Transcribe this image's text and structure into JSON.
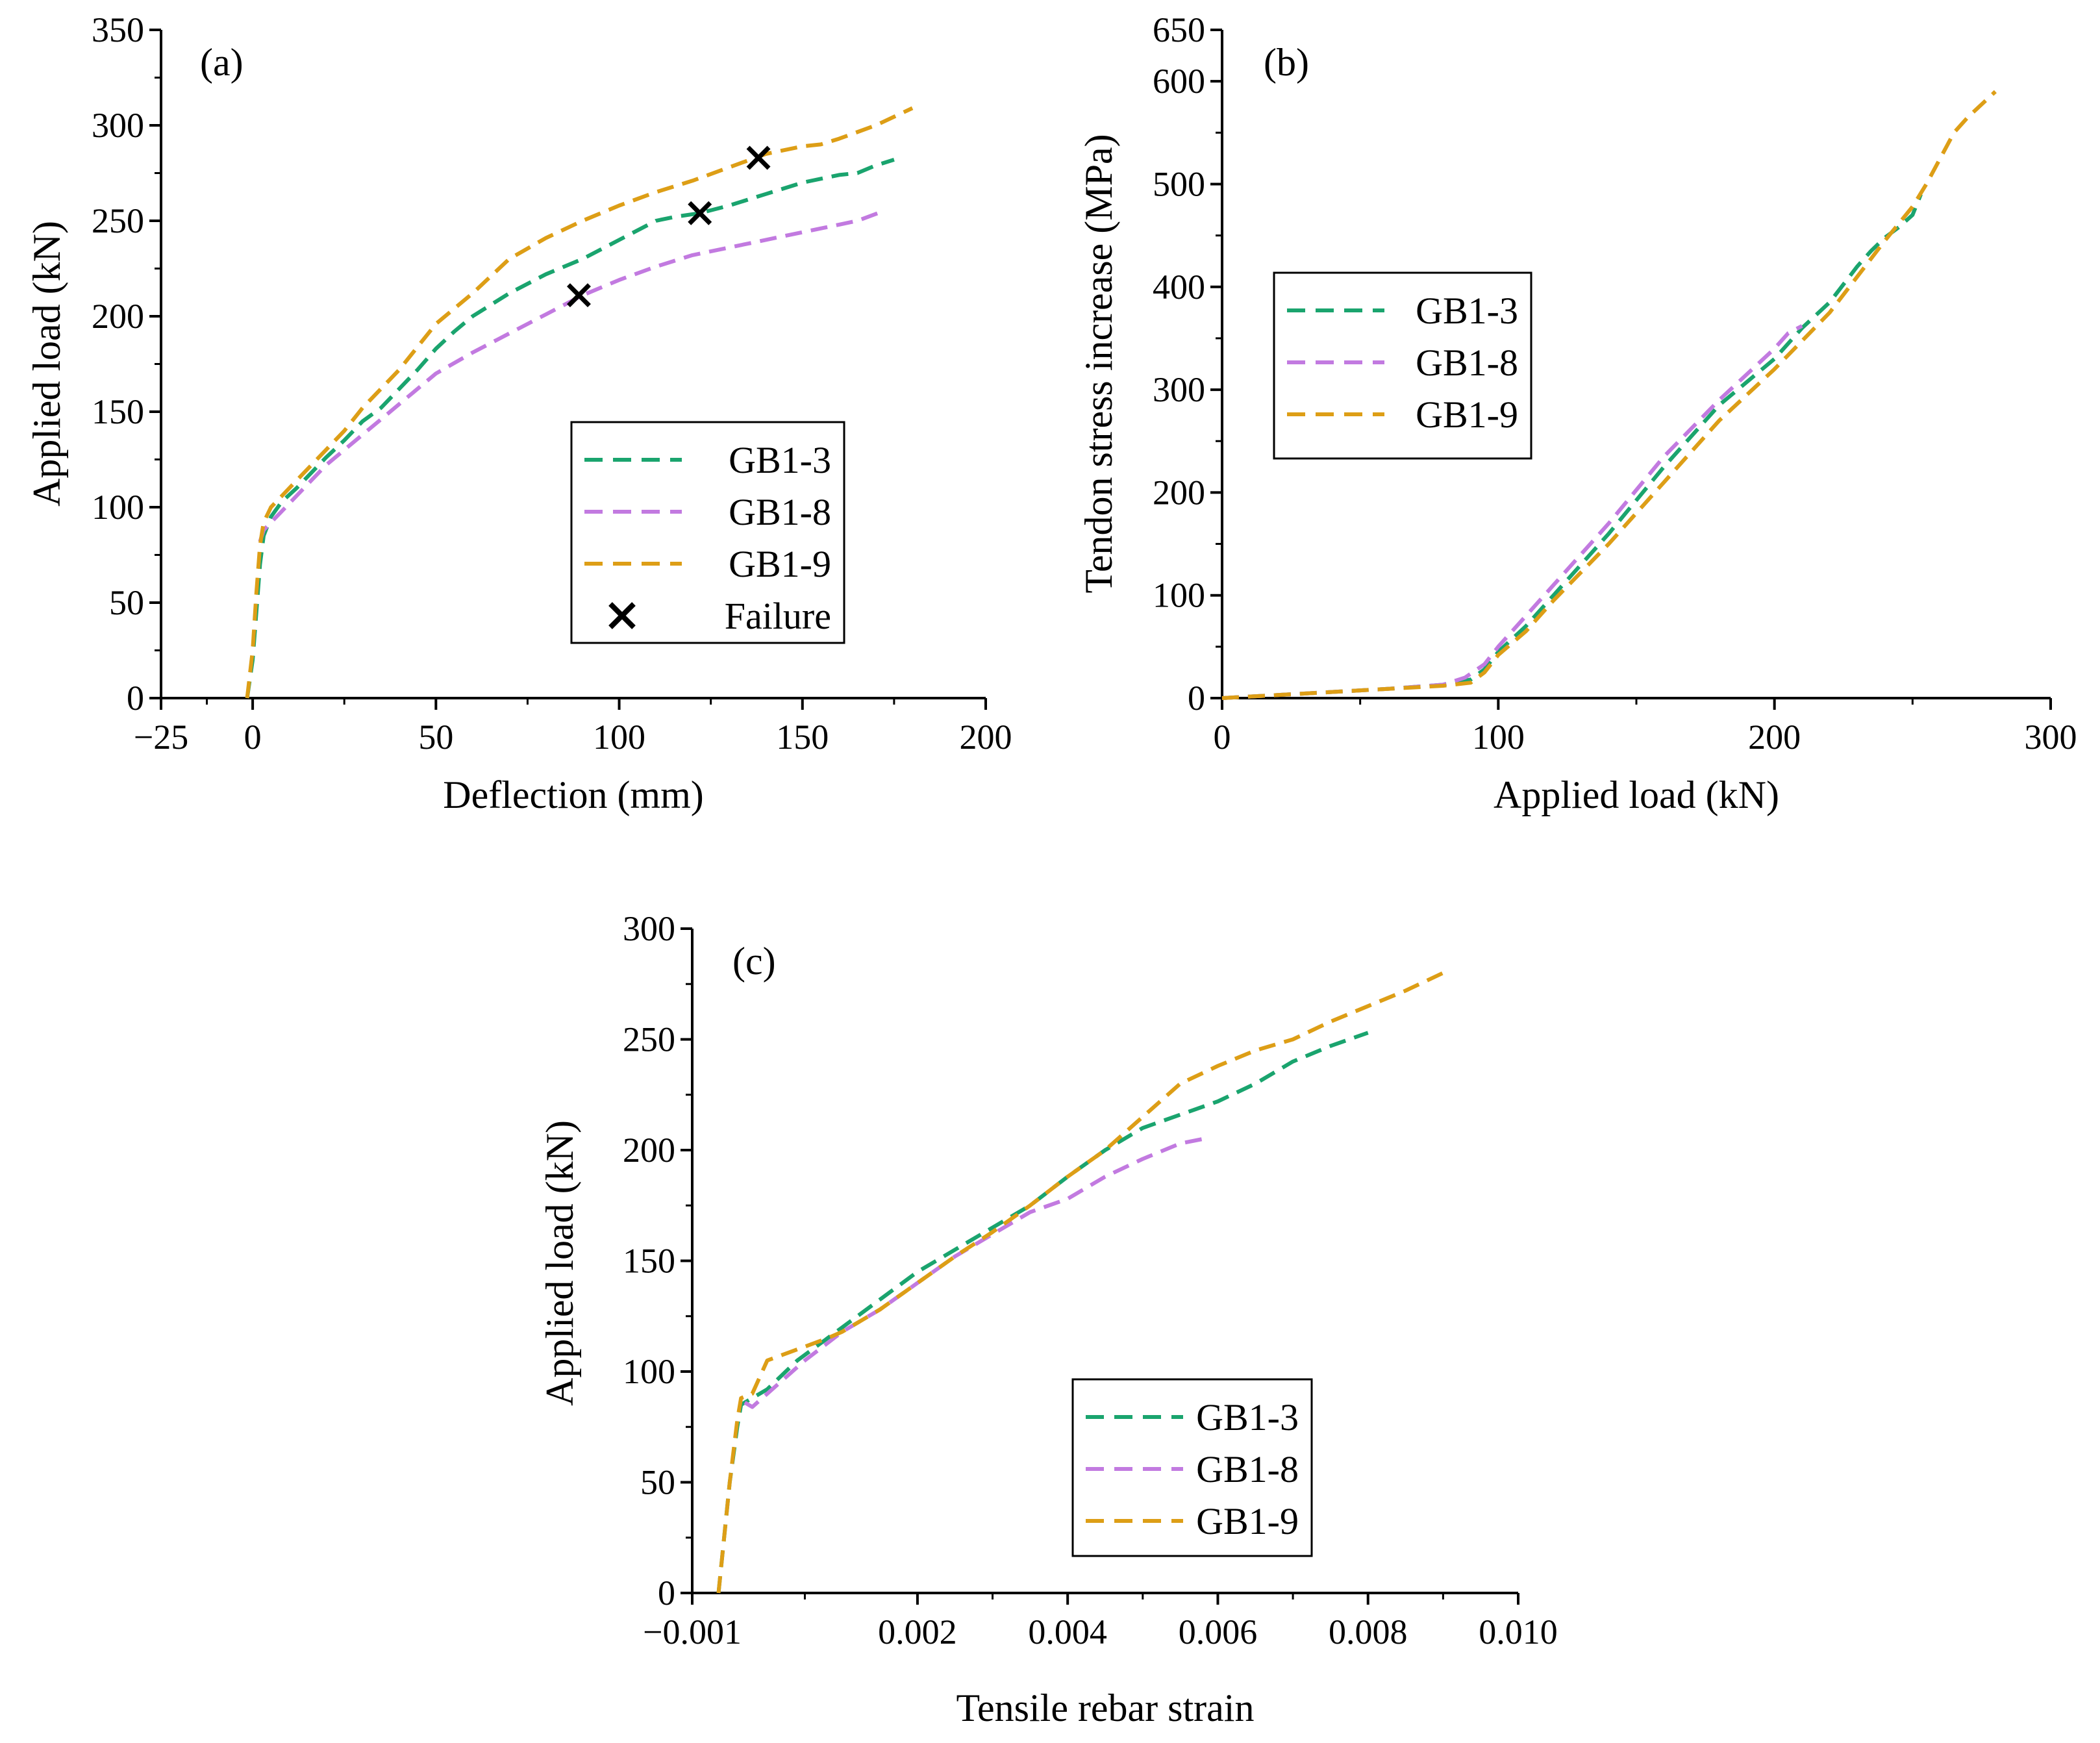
{
  "colors": {
    "GB1-3": "#1aa46e",
    "GB1-8": "#c27ae0",
    "GB1-9": "#dd9e16",
    "axis": "#000000",
    "failure": "#000000"
  },
  "chart_data": [
    {
      "id": "a",
      "panel_label": "(a)",
      "type": "line",
      "xlabel": "Deflection (mm)",
      "ylabel": "Applied load (kN)",
      "xlim": [
        -25,
        200
      ],
      "ylim": [
        0,
        350
      ],
      "xticks": [
        -25,
        0,
        50,
        100,
        150,
        200
      ],
      "xtick_labels": [
        "−25",
        "0",
        "50",
        "100",
        "150",
        "200"
      ],
      "yticks": [
        0,
        50,
        100,
        150,
        200,
        250,
        300,
        350
      ],
      "ytick_labels": [
        "0",
        "50",
        "100",
        "150",
        "200",
        "250",
        "300",
        "350"
      ],
      "legend": {
        "position": "center-right",
        "entries": [
          "GB1-3",
          "GB1-8",
          "GB1-9",
          "Failure"
        ]
      },
      "series": [
        {
          "name": "GB1-3",
          "x": [
            -1.5,
            0,
            1,
            2,
            3,
            5,
            8,
            12,
            16,
            20,
            25,
            30,
            35,
            40,
            45,
            50,
            55,
            60,
            70,
            80,
            90,
            100,
            110,
            115,
            122,
            130,
            140,
            150,
            160,
            165,
            170,
            175
          ],
          "y": [
            0,
            20,
            45,
            70,
            85,
            95,
            103,
            110,
            118,
            126,
            135,
            145,
            152,
            162,
            172,
            183,
            192,
            200,
            212,
            222,
            230,
            240,
            250,
            252,
            254,
            258,
            264,
            270,
            274,
            275,
            279,
            282
          ]
        },
        {
          "name": "GB1-8",
          "x": [
            2,
            3,
            5,
            8,
            12,
            16,
            20,
            25,
            30,
            35,
            40,
            45,
            50,
            60,
            70,
            80,
            90,
            100,
            110,
            120,
            130,
            140,
            150,
            160,
            165,
            172
          ],
          "y": [
            82,
            88,
            92,
            98,
            106,
            114,
            122,
            130,
            138,
            146,
            154,
            162,
            170,
            181,
            191,
            201,
            211,
            219,
            226,
            232,
            236,
            240,
            244,
            248,
            250,
            255
          ]
        },
        {
          "name": "GB1-9",
          "x": [
            -1.5,
            0,
            1,
            2,
            3,
            5,
            8,
            12,
            16,
            20,
            25,
            30,
            35,
            40,
            45,
            50,
            60,
            70,
            80,
            90,
            100,
            110,
            120,
            130,
            140,
            150,
            155,
            160,
            170,
            180
          ],
          "y": [
            0,
            25,
            55,
            80,
            92,
            100,
            106,
            114,
            122,
            130,
            140,
            152,
            162,
            172,
            184,
            196,
            212,
            230,
            241,
            250,
            258,
            265,
            271,
            278,
            285,
            289,
            290,
            293,
            300,
            309
          ]
        }
      ],
      "failure_points": {
        "x": [
          89,
          122,
          138
        ],
        "y": [
          211,
          254,
          283
        ]
      }
    },
    {
      "id": "b",
      "panel_label": "(b)",
      "type": "line",
      "xlabel": "Applied load (kN)",
      "ylabel": "Tendon stress increase (MPa)",
      "xlim": [
        0,
        300
      ],
      "ylim": [
        0,
        650
      ],
      "xticks": [
        0,
        100,
        200,
        300
      ],
      "xtick_labels": [
        "0",
        "100",
        "200",
        "300"
      ],
      "yticks": [
        0,
        100,
        200,
        300,
        400,
        500,
        600,
        650
      ],
      "ytick_labels": [
        "0",
        "100",
        "200",
        "300",
        "400",
        "500",
        "600",
        "650"
      ],
      "legend": {
        "position": "upper-left",
        "entries": [
          "GB1-3",
          "GB1-8",
          "GB1-9"
        ]
      },
      "series": [
        {
          "name": "GB1-3",
          "x": [
            0,
            20,
            40,
            60,
            80,
            90,
            95,
            100,
            110,
            120,
            140,
            160,
            180,
            200,
            210,
            220,
            230,
            235,
            240,
            245,
            250,
            253
          ],
          "y": [
            0,
            3,
            6,
            9,
            13,
            18,
            28,
            45,
            70,
            100,
            160,
            225,
            285,
            330,
            360,
            385,
            420,
            435,
            448,
            458,
            470,
            490
          ]
        },
        {
          "name": "GB1-8",
          "x": [
            0,
            20,
            40,
            60,
            80,
            88,
            95,
            100,
            110,
            120,
            140,
            160,
            180,
            200,
            205,
            210
          ],
          "y": [
            0,
            3,
            6,
            9,
            13,
            20,
            33,
            50,
            80,
            110,
            170,
            235,
            290,
            340,
            355,
            362
          ]
        },
        {
          "name": "GB1-9",
          "x": [
            0,
            20,
            40,
            60,
            80,
            90,
            95,
            100,
            110,
            120,
            140,
            160,
            180,
            200,
            220,
            240,
            250,
            255,
            260,
            265,
            270,
            280
          ],
          "y": [
            0,
            3,
            6,
            9,
            12,
            15,
            25,
            42,
            65,
            95,
            150,
            210,
            270,
            320,
            375,
            445,
            478,
            500,
            525,
            550,
            565,
            590
          ]
        }
      ]
    },
    {
      "id": "c",
      "panel_label": "(c)",
      "type": "line",
      "xlabel": "Tensile rebar strain",
      "ylabel": "Applied load (kN)",
      "xlim": [
        -0.001,
        0.01
      ],
      "ylim": [
        0,
        300
      ],
      "xticks": [
        -0.001,
        0.002,
        0.004,
        0.006,
        0.008,
        0.01
      ],
      "xtick_labels": [
        "−0.001",
        "0.002",
        "0.004",
        "0.006",
        "0.008",
        "0.010"
      ],
      "yticks": [
        0,
        50,
        100,
        150,
        200,
        250,
        300
      ],
      "ytick_labels": [
        "0",
        "50",
        "100",
        "150",
        "200",
        "250",
        "300"
      ],
      "legend": {
        "position": "lower-right",
        "entries": [
          "GB1-3",
          "GB1-8",
          "GB1-9"
        ]
      },
      "series": [
        {
          "name": "GB1-3",
          "x": [
            -0.00065,
            -0.0005,
            -0.0004,
            -0.00035,
            -0.0003,
            0,
            0.0004,
            0.001,
            0.002,
            0.003,
            0.0035,
            0.004,
            0.0045,
            0.005,
            0.006,
            0.0065,
            0.007,
            0.0075,
            0.008
          ],
          "y": [
            0,
            50,
            75,
            85,
            86,
            92,
            105,
            120,
            145,
            165,
            175,
            188,
            200,
            210,
            222,
            230,
            240,
            247,
            253
          ]
        },
        {
          "name": "GB1-8",
          "x": [
            -0.0003,
            -0.0002,
            0,
            0.0005,
            0.001,
            0.0015,
            0.002,
            0.0025,
            0.003,
            0.0035,
            0.004,
            0.0045,
            0.005,
            0.0055,
            0.0058
          ],
          "y": [
            86,
            84,
            90,
            105,
            118,
            128,
            140,
            152,
            162,
            172,
            178,
            188,
            196,
            203,
            205
          ]
        },
        {
          "name": "GB1-9",
          "x": [
            -0.00065,
            -0.0005,
            -0.0004,
            -0.00035,
            -0.0002,
            0,
            0.0004,
            0.0008,
            0.001,
            0.0015,
            0.002,
            0.0025,
            0.003,
            0.0035,
            0.004,
            0.0045,
            0.005,
            0.0055,
            0.006,
            0.0065,
            0.007,
            0.0075,
            0.008,
            0.0085,
            0.009
          ],
          "y": [
            0,
            50,
            78,
            88,
            90,
            105,
            110,
            115,
            118,
            128,
            140,
            152,
            163,
            175,
            188,
            200,
            215,
            230,
            238,
            245,
            250,
            258,
            265,
            272,
            280
          ]
        }
      ]
    }
  ]
}
